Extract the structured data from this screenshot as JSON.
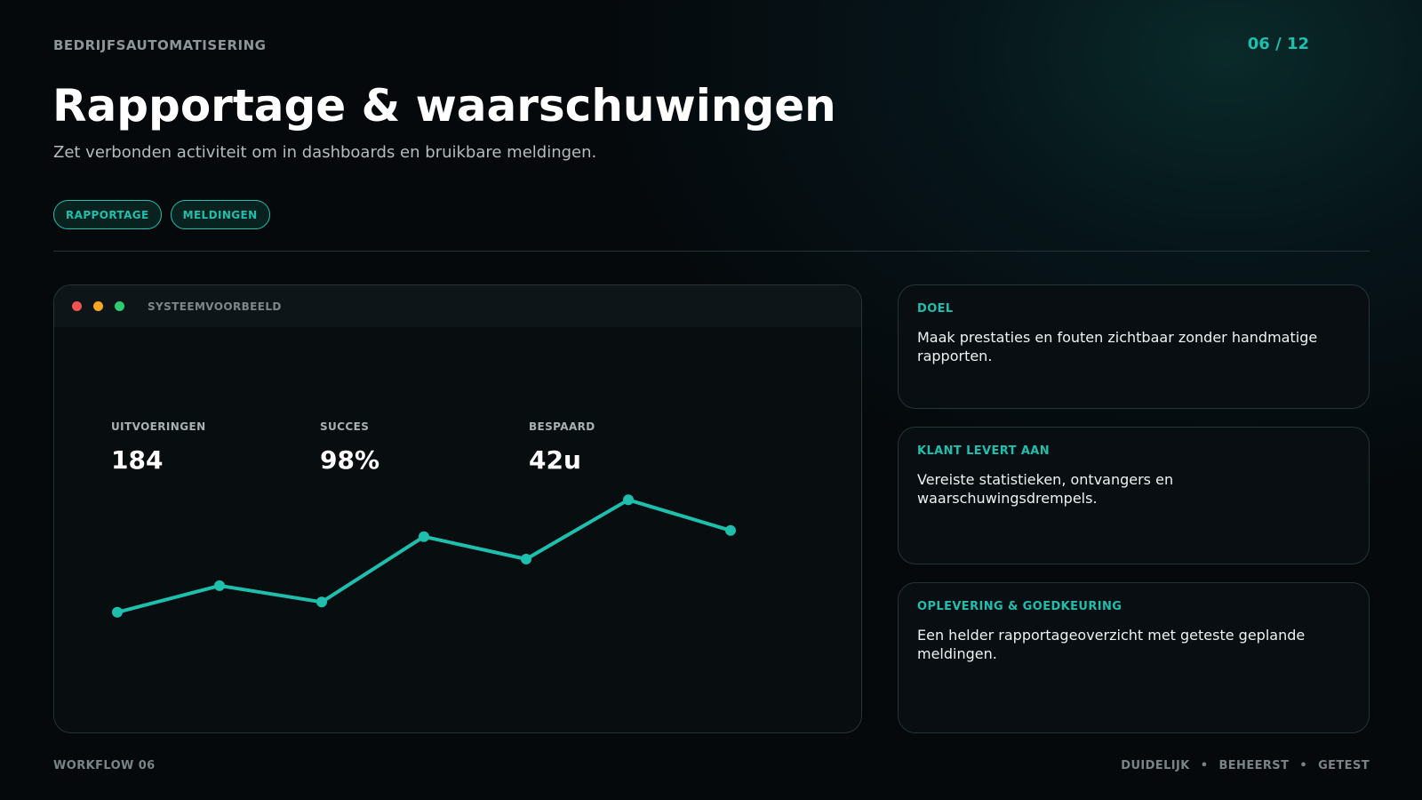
{
  "header": {
    "eyebrow": "BEDRIJFSAUTOMATISERING",
    "page_counter": "06 / 12",
    "title": "Rapportage & waarschuwingen",
    "subtitle": "Zet verbonden activiteit om in dashboards en bruikbare meldingen."
  },
  "tags": [
    "RAPPORTAGE",
    "MELDINGEN"
  ],
  "preview": {
    "window_title": "SYSTEEMVOORBEELD",
    "window_dots": [
      "#ef5350",
      "#f5a623",
      "#2ecc71"
    ],
    "stats": [
      {
        "label": "UITVOERINGEN",
        "value": "184"
      },
      {
        "label": "SUCCES",
        "value": "98%"
      },
      {
        "label": "BESPAARD",
        "value": "42u"
      }
    ],
    "trend_line": {
      "color": "#1fbfae",
      "values": [
        14,
        27,
        19,
        51,
        40,
        69,
        54
      ]
    }
  },
  "cards": [
    {
      "label": "DOEL",
      "text": "Maak prestaties en fouten zichtbaar zonder handmatige rapporten."
    },
    {
      "label": "KLANT LEVERT AAN",
      "text": "Vereiste statistieken, ontvangers en waarschuwingsdrempels."
    },
    {
      "label": "OPLEVERING & GOEDKEURING",
      "text": "Een helder rapportageoverzicht met geteste geplande meldingen."
    }
  ],
  "footer": {
    "left": "WORKFLOW 06",
    "right": [
      "DUIDELIJK",
      "•",
      "BEHEERST",
      "•",
      "GETEST"
    ]
  },
  "colors": {
    "accent": "#1fbfae",
    "background": "#05090c"
  }
}
